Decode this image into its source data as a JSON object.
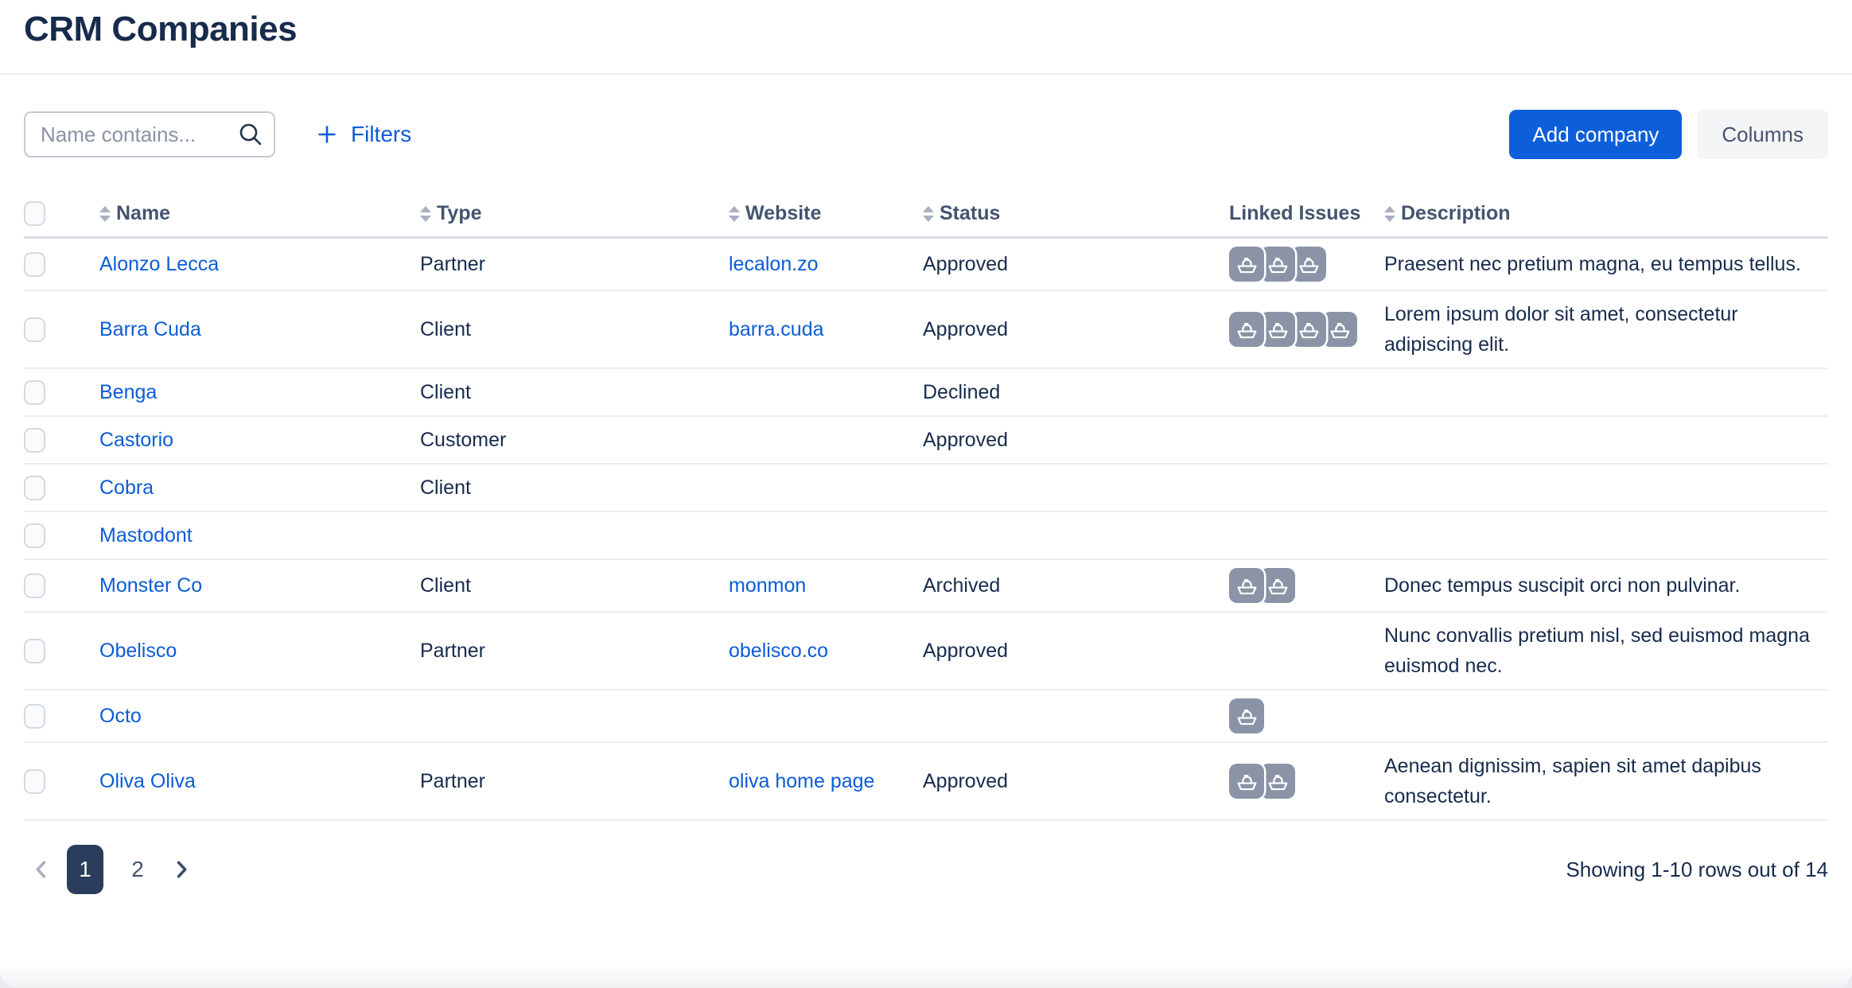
{
  "page_title": "CRM Companies",
  "toolbar": {
    "search_placeholder": "Name contains...",
    "filters_label": "Filters",
    "add_company_label": "Add company",
    "columns_label": "Columns"
  },
  "icons": {
    "search": "magnifier-icon",
    "filters": "plus-icon",
    "linked_issue": "ship-icon",
    "sort": "sort-arrows-icon",
    "prev_page": "chevron-left-icon",
    "next_page": "chevron-right-icon"
  },
  "table": {
    "columns": [
      {
        "label": "Name",
        "sortable": true
      },
      {
        "label": "Type",
        "sortable": true
      },
      {
        "label": "Website",
        "sortable": true
      },
      {
        "label": "Status",
        "sortable": true
      },
      {
        "label": "Linked Issues",
        "sortable": false
      },
      {
        "label": "Description",
        "sortable": true
      }
    ],
    "rows": [
      {
        "name": "Alonzo Lecca",
        "type": "Partner",
        "website": "lecalon.zo",
        "status": "Approved",
        "linked_issues": 3,
        "description": "Praesent nec pretium magna, eu tempus tellus."
      },
      {
        "name": "Barra Cuda",
        "type": "Client",
        "website": "barra.cuda",
        "status": "Approved",
        "linked_issues": 4,
        "description": "Lorem ipsum dolor sit amet, consectetur adipiscing elit."
      },
      {
        "name": "Benga",
        "type": "Client",
        "website": "",
        "status": "Declined",
        "linked_issues": 0,
        "description": ""
      },
      {
        "name": "Castorio",
        "type": "Customer",
        "website": "",
        "status": "Approved",
        "linked_issues": 0,
        "description": ""
      },
      {
        "name": "Cobra",
        "type": "Client",
        "website": "",
        "status": "",
        "linked_issues": 0,
        "description": ""
      },
      {
        "name": "Mastodont",
        "type": "",
        "website": "",
        "status": "",
        "linked_issues": 0,
        "description": ""
      },
      {
        "name": "Monster Co",
        "type": "Client",
        "website": "monmon",
        "status": "Archived",
        "linked_issues": 2,
        "description": "Donec tempus suscipit orci non pulvinar."
      },
      {
        "name": "Obelisco",
        "type": "Partner",
        "website": "obelisco.co",
        "status": "Approved",
        "linked_issues": 0,
        "description": "Nunc convallis pretium nisl, sed euismod magna euismod nec."
      },
      {
        "name": "Octo",
        "type": "",
        "website": "",
        "status": "",
        "linked_issues": 1,
        "description": ""
      },
      {
        "name": "Oliva Oliva",
        "type": "Partner",
        "website": "oliva home page",
        "status": "Approved",
        "linked_issues": 2,
        "description": "Aenean dignissim, sapien sit amet dapibus consectetur."
      }
    ]
  },
  "pagination": {
    "pages": [
      {
        "label": "1",
        "active": true
      },
      {
        "label": "2",
        "active": false
      }
    ],
    "summary": "Showing 1-10 rows out of 14"
  },
  "colors": {
    "accent": "#0C5FD9",
    "link": "#0B5CD7",
    "text": "#172B4D",
    "header_text": "#44546F",
    "placeholder": "#8993A4",
    "badge": "#8A94A6",
    "row_border": "#EBEDF0",
    "header_border": "#D8DCE3",
    "active_page_bg": "#2B3D5C",
    "secondary_button_bg": "#F4F5F6",
    "disabled_chevron": "#A9B1C0"
  }
}
